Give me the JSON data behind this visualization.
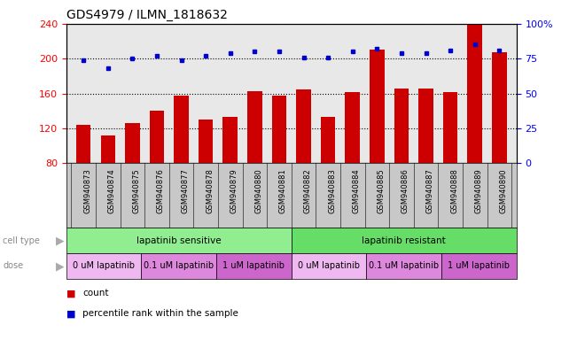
{
  "title": "GDS4979 / ILMN_1818632",
  "samples": [
    "GSM940873",
    "GSM940874",
    "GSM940875",
    "GSM940876",
    "GSM940877",
    "GSM940878",
    "GSM940879",
    "GSM940880",
    "GSM940881",
    "GSM940882",
    "GSM940883",
    "GSM940884",
    "GSM940885",
    "GSM940886",
    "GSM940887",
    "GSM940888",
    "GSM940889",
    "GSM940890"
  ],
  "counts": [
    124,
    112,
    126,
    140,
    158,
    130,
    133,
    163,
    158,
    165,
    133,
    162,
    210,
    166,
    166,
    162,
    239,
    207
  ],
  "percentiles": [
    74,
    68,
    75,
    77,
    74,
    77,
    79,
    80,
    80,
    76,
    76,
    80,
    82,
    79,
    79,
    81,
    85,
    81
  ],
  "cell_type_groups": [
    {
      "label": "lapatinib sensitive",
      "start": 0,
      "end": 9,
      "color": "#90ee90"
    },
    {
      "label": "lapatinib resistant",
      "start": 9,
      "end": 18,
      "color": "#66dd66"
    }
  ],
  "dose_defs": [
    {
      "label": "0 uM lapatinib",
      "start": 0,
      "end": 3,
      "color": "#f0b8f0"
    },
    {
      "label": "0.1 uM lapatinib",
      "start": 3,
      "end": 6,
      "color": "#dd88dd"
    },
    {
      "label": "1 uM lapatinib",
      "start": 6,
      "end": 9,
      "color": "#cc66cc"
    },
    {
      "label": "0 uM lapatinib",
      "start": 9,
      "end": 12,
      "color": "#f0b8f0"
    },
    {
      "label": "0.1 uM lapatinib",
      "start": 12,
      "end": 15,
      "color": "#dd88dd"
    },
    {
      "label": "1 uM lapatinib",
      "start": 15,
      "end": 18,
      "color": "#cc66cc"
    }
  ],
  "ylim_left": [
    80,
    240
  ],
  "ylim_right": [
    0,
    100
  ],
  "yticks_left": [
    80,
    120,
    160,
    200,
    240
  ],
  "yticks_right": [
    0,
    25,
    50,
    75,
    100
  ],
  "bar_color": "#cc0000",
  "dot_color": "#0000cc",
  "plot_bg_color": "#e8e8e8",
  "label_bg_color": "#c8c8c8"
}
